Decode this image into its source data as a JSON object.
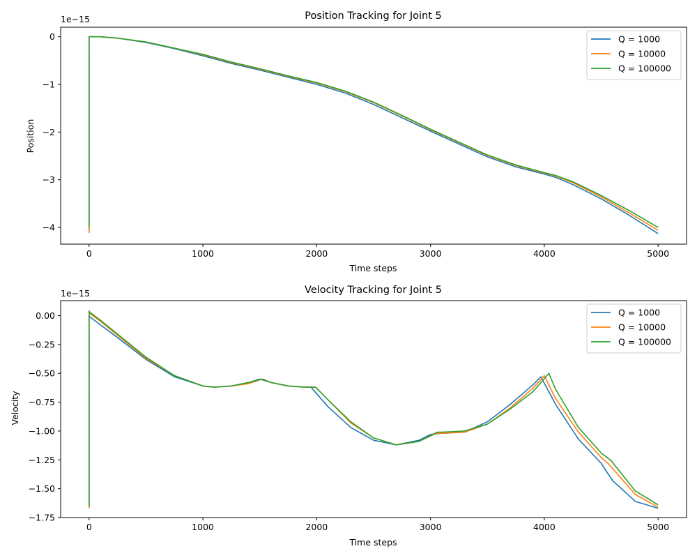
{
  "chart_data": [
    {
      "type": "line",
      "title": "Position Tracking for Joint 5",
      "xlabel": "Time steps",
      "ylabel": "Position",
      "offset_text": "1e−15",
      "xlim": [
        -250,
        5250
      ],
      "ylim": [
        -4.35,
        0.2
      ],
      "x_ticks": [
        0,
        1000,
        2000,
        3000,
        4000,
        5000
      ],
      "x_tick_labels": [
        "0",
        "1000",
        "2000",
        "3000",
        "4000",
        "5000"
      ],
      "y_ticks": [
        0,
        -1,
        -2,
        -3,
        -4
      ],
      "y_tick_labels": [
        "0",
        "−1",
        "−2",
        "−3",
        "−4"
      ],
      "grid": false,
      "legend": "top-right",
      "series": [
        {
          "name": "Q = 1000",
          "color": "#1f77b4",
          "x": [
            0,
            0,
            5,
            100,
            250,
            500,
            750,
            1000,
            1250,
            1500,
            1750,
            2000,
            2250,
            2500,
            2750,
            3000,
            3250,
            3500,
            3750,
            4000,
            4100,
            4250,
            4500,
            4750,
            5000
          ],
          "y": [
            -4.05,
            0,
            0,
            0,
            -0.03,
            -0.12,
            -0.25,
            -0.4,
            -0.56,
            -0.7,
            -0.85,
            -1.0,
            -1.18,
            -1.42,
            -1.7,
            -1.98,
            -2.25,
            -2.52,
            -2.73,
            -2.88,
            -2.95,
            -3.1,
            -3.4,
            -3.75,
            -4.13
          ]
        },
        {
          "name": "Q = 10000",
          "color": "#ff7f0e",
          "x": [
            0,
            0,
            5,
            100,
            250,
            500,
            750,
            1000,
            1250,
            1500,
            1750,
            2000,
            2250,
            2500,
            2750,
            3000,
            3250,
            3500,
            3750,
            4000,
            4100,
            4250,
            4500,
            4750,
            5000
          ],
          "y": [
            -4.12,
            0,
            0,
            0,
            -0.03,
            -0.11,
            -0.24,
            -0.38,
            -0.54,
            -0.68,
            -0.83,
            -0.97,
            -1.15,
            -1.38,
            -1.66,
            -1.95,
            -2.22,
            -2.49,
            -2.7,
            -2.86,
            -2.92,
            -3.06,
            -3.36,
            -3.7,
            -4.06
          ]
        },
        {
          "name": "Q = 100000",
          "color": "#2ca02c",
          "x": [
            0,
            0,
            5,
            100,
            250,
            500,
            750,
            1000,
            1250,
            1500,
            1750,
            2000,
            2250,
            2500,
            2750,
            3000,
            3250,
            3500,
            3750,
            4000,
            4100,
            4250,
            4500,
            4750,
            5000
          ],
          "y": [
            -4.0,
            0,
            0,
            0,
            -0.03,
            -0.11,
            -0.24,
            -0.37,
            -0.53,
            -0.67,
            -0.82,
            -0.96,
            -1.14,
            -1.37,
            -1.65,
            -1.94,
            -2.21,
            -2.48,
            -2.69,
            -2.85,
            -2.91,
            -3.04,
            -3.33,
            -3.65,
            -4.0
          ]
        }
      ]
    },
    {
      "type": "line",
      "title": "Velocity Tracking for Joint 5",
      "xlabel": "Time steps",
      "ylabel": "Velocity",
      "offset_text": "1e−15",
      "xlim": [
        -250,
        5250
      ],
      "ylim": [
        -1.75,
        0.13
      ],
      "x_ticks": [
        0,
        1000,
        2000,
        3000,
        4000,
        5000
      ],
      "x_tick_labels": [
        "0",
        "1000",
        "2000",
        "3000",
        "4000",
        "5000"
      ],
      "y_ticks": [
        0,
        -0.25,
        -0.5,
        -0.75,
        -1.0,
        -1.25,
        -1.5,
        -1.75
      ],
      "y_tick_labels": [
        "0.00",
        "−0.25",
        "−0.50",
        "−0.75",
        "−1.00",
        "−1.25",
        "−1.50",
        "−1.75"
      ],
      "grid": false,
      "legend": "top-right",
      "series": [
        {
          "name": "Q = 1000",
          "color": "#1f77b4",
          "x": [
            0,
            0,
            5,
            100,
            250,
            500,
            750,
            1000,
            1100,
            1250,
            1400,
            1500,
            1600,
            1750,
            1900,
            1950,
            2100,
            2300,
            2500,
            2700,
            2900,
            3000,
            3100,
            3300,
            3500,
            3700,
            3900,
            3970,
            4100,
            4300,
            4500,
            4600,
            4800,
            5000
          ],
          "y": [
            -1.66,
            0,
            -0.01,
            -0.08,
            -0.19,
            -0.38,
            -0.53,
            -0.61,
            -0.62,
            -0.61,
            -0.58,
            -0.55,
            -0.58,
            -0.61,
            -0.62,
            -0.62,
            -0.79,
            -0.97,
            -1.08,
            -1.12,
            -1.08,
            -1.03,
            -1.02,
            -1.01,
            -0.92,
            -0.77,
            -0.6,
            -0.53,
            -0.77,
            -1.07,
            -1.28,
            -1.43,
            -1.61,
            -1.67
          ]
        },
        {
          "name": "Q = 10000",
          "color": "#ff7f0e",
          "x": [
            0,
            0,
            5,
            100,
            250,
            500,
            750,
            1000,
            1100,
            1250,
            1400,
            1520,
            1600,
            1750,
            1900,
            1990,
            2100,
            2300,
            2500,
            2700,
            2900,
            3050,
            3100,
            3300,
            3500,
            3700,
            3900,
            4000,
            4100,
            4300,
            4500,
            4560,
            4800,
            5000
          ],
          "y": [
            -1.67,
            0.03,
            0.02,
            -0.05,
            -0.17,
            -0.37,
            -0.52,
            -0.61,
            -0.62,
            -0.61,
            -0.59,
            -0.55,
            -0.58,
            -0.61,
            -0.62,
            -0.62,
            -0.73,
            -0.93,
            -1.06,
            -1.12,
            -1.09,
            -1.02,
            -1.02,
            -1.01,
            -0.94,
            -0.8,
            -0.63,
            -0.52,
            -0.72,
            -1.01,
            -1.23,
            -1.28,
            -1.55,
            -1.66
          ]
        },
        {
          "name": "Q = 100000",
          "color": "#2ca02c",
          "x": [
            0,
            0,
            5,
            100,
            250,
            500,
            750,
            1000,
            1100,
            1250,
            1400,
            1520,
            1600,
            1750,
            1900,
            1990,
            2100,
            2300,
            2500,
            2700,
            2900,
            3060,
            3100,
            3300,
            3500,
            3700,
            3900,
            4040,
            4100,
            4300,
            4500,
            4590,
            4800,
            5000
          ],
          "y": [
            -1.65,
            0.04,
            0.03,
            -0.04,
            -0.16,
            -0.36,
            -0.52,
            -0.61,
            -0.62,
            -0.61,
            -0.58,
            -0.55,
            -0.58,
            -0.61,
            -0.62,
            -0.62,
            -0.73,
            -0.92,
            -1.06,
            -1.12,
            -1.09,
            -1.01,
            -1.01,
            -1.0,
            -0.94,
            -0.81,
            -0.66,
            -0.5,
            -0.64,
            -0.97,
            -1.19,
            -1.26,
            -1.52,
            -1.64
          ]
        }
      ]
    }
  ]
}
